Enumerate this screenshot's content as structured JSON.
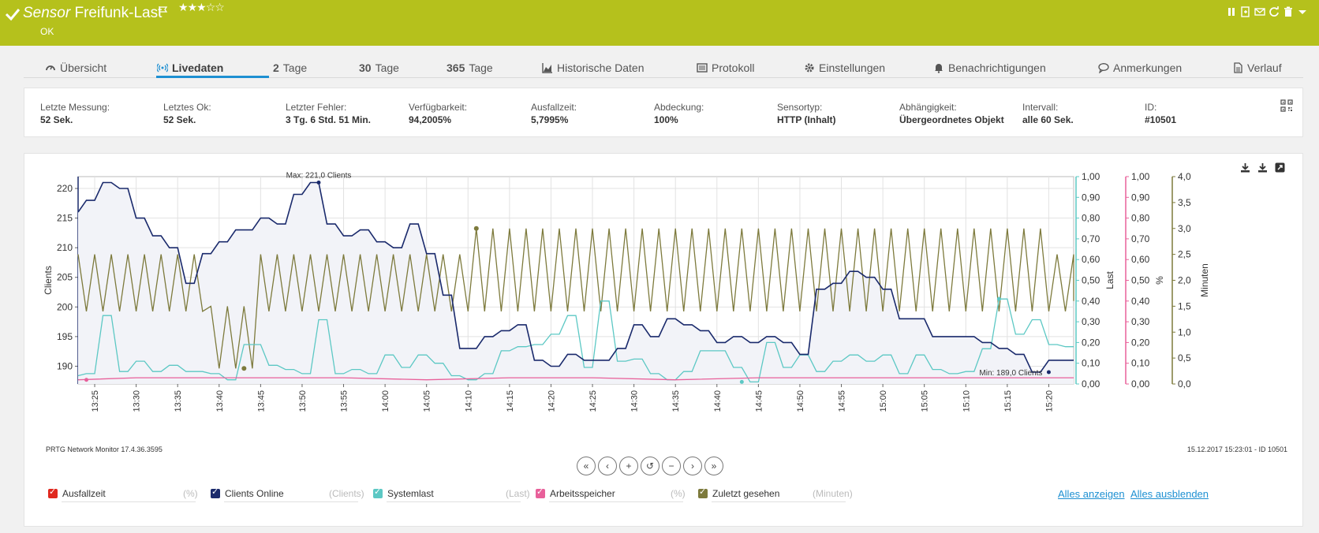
{
  "header": {
    "type_label": "Sensor",
    "sensor_name": "Freifunk-Last",
    "status": "OK",
    "priority_stars": 3,
    "priority_stars_max": 5,
    "icons": [
      "check-icon",
      "flag-icon",
      "pause-icon",
      "clone-icon",
      "mail-icon",
      "refresh-icon",
      "trash-icon",
      "dropdown-icon"
    ],
    "bg_color": "#b5c11c"
  },
  "tabs": [
    {
      "label": "Übersicht",
      "icon": "gauge-icon"
    },
    {
      "label": "Livedaten",
      "icon": "live-icon",
      "active": true
    },
    {
      "num": "2",
      "label": "Tage"
    },
    {
      "num": "30",
      "label": "Tage"
    },
    {
      "num": "365",
      "label": "Tage"
    },
    {
      "label": "Historische Daten",
      "icon": "area-chart-icon"
    },
    {
      "label": "Protokoll",
      "icon": "log-icon"
    },
    {
      "label": "Einstellungen",
      "icon": "gear-icon"
    },
    {
      "label": "Benachrichtigungen",
      "icon": "bell-icon"
    },
    {
      "label": "Anmerkungen",
      "icon": "comment-icon"
    },
    {
      "label": "Verlauf",
      "icon": "history-icon"
    }
  ],
  "info": [
    {
      "k": "Letzte Messung:",
      "v": "52 Sek."
    },
    {
      "k": "Letztes Ok:",
      "v": "52 Sek."
    },
    {
      "k": "Letzter Fehler:",
      "v": "3 Tg. 6 Std. 51 Min."
    },
    {
      "k": "Verfügbarkeit:",
      "v": "94,2005%"
    },
    {
      "k": "Ausfallzeit:",
      "v": "5,7995%"
    },
    {
      "k": "Abdeckung:",
      "v": "100%"
    },
    {
      "k": "Sensortyp:",
      "v": "HTTP (Inhalt)"
    },
    {
      "k": "Abhängigkeit:",
      "v": "Übergeordnetes Objekt"
    },
    {
      "k": "Intervall:",
      "v": "alle 60 Sek."
    },
    {
      "k": "ID:",
      "v": "#10501"
    }
  ],
  "footer": {
    "left": "PRTG Network Monitor 17.4.36.3595",
    "right": "15.12.2017 15:23:01 - ID 10501"
  },
  "nav_buttons": [
    "«",
    "‹",
    "+",
    "↺",
    "−",
    "›",
    "»"
  ],
  "legend": [
    {
      "label": "Ausfallzeit",
      "unit": "(%)",
      "color": "#e0281e"
    },
    {
      "label": "Clients Online",
      "unit": "(Clients)",
      "color": "#1a2a6c"
    },
    {
      "label": "Systemlast",
      "unit": "(Last)",
      "color": "#5cc8c4"
    },
    {
      "label": "Arbeitsspeicher",
      "unit": "(%)",
      "color": "#e8609a"
    },
    {
      "label": "Zuletzt gesehen",
      "unit": "(Minuten)",
      "color": "#7d7a3c"
    }
  ],
  "legend_links": {
    "show_all": "Alles anzeigen",
    "hide_all": "Alles ausblenden"
  },
  "chart_data": {
    "type": "line",
    "x_ticks": [
      "13:25",
      "13:30",
      "13:35",
      "13:40",
      "13:45",
      "13:50",
      "13:55",
      "14:00",
      "14:05",
      "14:10",
      "14:15",
      "14:20",
      "14:25",
      "14:30",
      "14:35",
      "14:40",
      "14:45",
      "14:50",
      "14:55",
      "15:00",
      "15:05",
      "15:10",
      "15:15",
      "15:20"
    ],
    "x_range": [
      "13:23",
      "15:23"
    ],
    "grid": true,
    "axes": [
      {
        "id": "clients",
        "side": "left",
        "label": "Clients",
        "range": [
          187,
          222
        ],
        "ticks": [
          "190",
          "195",
          "200",
          "205",
          "210",
          "215",
          "220"
        ],
        "color": "#1a2a6c"
      },
      {
        "id": "last",
        "side": "right",
        "label": "Last",
        "range": [
          0,
          1
        ],
        "ticks": [
          "0,00",
          "0,10",
          "0,20",
          "0,30",
          "0,40",
          "0,50",
          "0,60",
          "0,70",
          "0,80",
          "0,90",
          "1,00"
        ],
        "color": "#5cc8c4"
      },
      {
        "id": "pct",
        "side": "right",
        "label": "%",
        "range": [
          0,
          1
        ],
        "ticks": [
          "0,00",
          "0,10",
          "0,20",
          "0,30",
          "0,40",
          "0,50",
          "0,60",
          "0,70",
          "0,80",
          "0,90",
          "1,00"
        ],
        "color": "#e8609a"
      },
      {
        "id": "min",
        "side": "right",
        "label": "Minuten",
        "range": [
          0,
          4
        ],
        "ticks": [
          "0,0",
          "0,5",
          "1,0",
          "1,5",
          "2,0",
          "2,5",
          "3,0",
          "3,5",
          "4,0"
        ],
        "color": "#7d7a3c"
      }
    ],
    "annotations": {
      "max": "Max: 221,0 Clients",
      "min": "Min: 189,0 Clients"
    },
    "series": [
      {
        "name": "Clients Online",
        "axis": "clients",
        "color": "#1a2a6c",
        "fill": true,
        "step": true,
        "x": [
          "13:23",
          "13:24",
          "13:25",
          "13:26",
          "13:27",
          "13:28",
          "13:29",
          "13:30",
          "13:31",
          "13:32",
          "13:33",
          "13:34",
          "13:35",
          "13:36",
          "13:37",
          "13:38",
          "13:39",
          "13:40",
          "13:41",
          "13:42",
          "13:43",
          "13:44",
          "13:45",
          "13:46",
          "13:47",
          "13:48",
          "13:49",
          "13:50",
          "13:51",
          "13:52",
          "13:53",
          "13:54",
          "13:55",
          "13:56",
          "13:57",
          "13:58",
          "13:59",
          "14:00",
          "14:01",
          "14:02",
          "14:03",
          "14:04",
          "14:05",
          "14:06",
          "14:07",
          "14:08",
          "14:09",
          "14:10",
          "14:11",
          "14:12",
          "14:13",
          "14:14",
          "14:15",
          "14:16",
          "14:17",
          "14:18",
          "14:19",
          "14:20",
          "14:21",
          "14:22",
          "14:23",
          "14:24",
          "14:25",
          "14:26",
          "14:27",
          "14:28",
          "14:29",
          "14:30",
          "14:31",
          "14:32",
          "14:33",
          "14:34",
          "14:35",
          "14:36",
          "14:37",
          "14:38",
          "14:39",
          "14:40",
          "14:41",
          "14:42",
          "14:43",
          "14:44",
          "14:45",
          "14:46",
          "14:47",
          "14:48",
          "14:49",
          "14:50",
          "14:51",
          "14:52",
          "14:53",
          "14:54",
          "14:55",
          "14:56",
          "14:57",
          "14:58",
          "14:59",
          "15:00",
          "15:01",
          "15:02",
          "15:03",
          "15:04",
          "15:05",
          "15:06",
          "15:07",
          "15:08",
          "15:09",
          "15:10",
          "15:11",
          "15:12",
          "15:13",
          "15:14",
          "15:15",
          "15:16",
          "15:17",
          "15:18",
          "15:19",
          "15:20",
          "15:21",
          "15:22",
          "15:23"
        ],
        "values": [
          216,
          218,
          218,
          221,
          221,
          220,
          220,
          215,
          215,
          212,
          212,
          210,
          210,
          204,
          204,
          209,
          209,
          211,
          211,
          213,
          213,
          213,
          215,
          215,
          214,
          214,
          219,
          219,
          221,
          221,
          214,
          214,
          212,
          212,
          213,
          213,
          211,
          211,
          210,
          210,
          214,
          214,
          209,
          209,
          202,
          202,
          193,
          193,
          193,
          195,
          195,
          196,
          196,
          197,
          197,
          191,
          191,
          190,
          190,
          192,
          192,
          191,
          191,
          191,
          191,
          193,
          193,
          197,
          197,
          195,
          195,
          198,
          198,
          197,
          197,
          196,
          196,
          194,
          194,
          195,
          195,
          194,
          194,
          195,
          195,
          194,
          194,
          192,
          192,
          203,
          203,
          204,
          204,
          206,
          206,
          205,
          205,
          203,
          203,
          198,
          198,
          198,
          198,
          195,
          195,
          195,
          195,
          195,
          195,
          194,
          194,
          193,
          193,
          192,
          192,
          189,
          189,
          191,
          191,
          191,
          191
        ]
      },
      {
        "name": "Systemlast",
        "axis": "last",
        "color": "#5cc8c4",
        "x": [
          "13:23",
          "13:24",
          "13:25",
          "13:26",
          "13:27",
          "13:28",
          "13:29",
          "13:30",
          "13:31",
          "13:32",
          "13:33",
          "13:34",
          "13:35",
          "13:36",
          "13:37",
          "13:38",
          "13:39",
          "13:40",
          "13:41",
          "13:42",
          "13:43",
          "13:44",
          "13:45",
          "13:46",
          "13:47",
          "13:48",
          "13:49",
          "13:50",
          "13:51",
          "13:52",
          "13:53",
          "13:54",
          "13:55",
          "13:56",
          "13:57",
          "13:58",
          "13:59",
          "14:00",
          "14:01",
          "14:02",
          "14:03",
          "14:04",
          "14:05",
          "14:06",
          "14:07",
          "14:08",
          "14:09",
          "14:10",
          "14:11",
          "14:12",
          "14:13",
          "14:14",
          "14:15",
          "14:16",
          "14:17",
          "14:18",
          "14:19",
          "14:20",
          "14:21",
          "14:22",
          "14:23",
          "14:24",
          "14:25",
          "14:26",
          "14:27",
          "14:28",
          "14:29",
          "14:30",
          "14:31",
          "14:32",
          "14:33",
          "14:34",
          "14:35",
          "14:36",
          "14:37",
          "14:38",
          "14:39",
          "14:40",
          "14:41",
          "14:42",
          "14:43",
          "14:44",
          "14:45",
          "14:46",
          "14:47",
          "14:48",
          "14:49",
          "14:50",
          "14:51",
          "14:52",
          "14:53",
          "14:54",
          "14:55",
          "14:56",
          "14:57",
          "14:58",
          "14:59",
          "15:00",
          "15:01",
          "15:02",
          "15:03",
          "15:04",
          "15:05",
          "15:06",
          "15:07",
          "15:08",
          "15:09",
          "15:10",
          "15:11",
          "15:12",
          "15:13",
          "15:14",
          "15:15",
          "15:16",
          "15:17",
          "15:18",
          "15:19",
          "15:20",
          "15:21",
          "15:22",
          "15:23"
        ],
        "values": [
          0.04,
          0.05,
          0.05,
          0.33,
          0.33,
          0.06,
          0.06,
          0.11,
          0.11,
          0.06,
          0.06,
          0.09,
          0.09,
          0.06,
          0.06,
          0.06,
          0.05,
          0.05,
          0.02,
          0.02,
          0.19,
          0.19,
          0.19,
          0.09,
          0.09,
          0.07,
          0.07,
          0.05,
          0.05,
          0.31,
          0.31,
          0.05,
          0.05,
          0.07,
          0.07,
          0.05,
          0.05,
          0.14,
          0.14,
          0.08,
          0.08,
          0.14,
          0.14,
          0.1,
          0.1,
          0.04,
          0.04,
          0.02,
          0.02,
          0.05,
          0.05,
          0.16,
          0.16,
          0.18,
          0.18,
          0.19,
          0.19,
          0.24,
          0.24,
          0.33,
          0.33,
          0.08,
          0.08,
          0.4,
          0.4,
          0.11,
          0.11,
          0.12,
          0.12,
          0.05,
          0.05,
          0.02,
          0.02,
          0.06,
          0.06,
          0.16,
          0.16,
          0.16,
          0.16,
          0.08,
          0.08,
          0.01,
          0.01,
          0.2,
          0.2,
          0.08,
          0.08,
          0.14,
          0.14,
          0.06,
          0.06,
          0.11,
          0.11,
          0.14,
          0.14,
          0.11,
          0.11,
          0.14,
          0.14,
          0.05,
          0.05,
          0.14,
          0.14,
          0.07,
          0.07,
          0.05,
          0.05,
          0.06,
          0.06,
          0.17,
          0.17,
          0.41,
          0.41,
          0.24,
          0.24,
          0.31,
          0.31,
          0.19,
          0.19,
          0.18,
          0.18
        ]
      },
      {
        "name": "Arbeitsspeicher",
        "axis": "pct",
        "color": "#e8609a",
        "x": [
          "13:23",
          "13:30",
          "13:45",
          "13:50",
          "13:55",
          "14:05",
          "14:15",
          "14:25",
          "14:35",
          "14:45",
          "14:55",
          "15:05",
          "15:15",
          "15:23"
        ],
        "values": [
          0.02,
          0.03,
          0.03,
          0.03,
          0.03,
          0.02,
          0.03,
          0.03,
          0.02,
          0.03,
          0.03,
          0.03,
          0.03,
          0.03
        ]
      },
      {
        "name": "Zuletzt gesehen",
        "axis": "min",
        "color": "#7d7a3c",
        "pattern": "sawtooth",
        "period_minutes": 2,
        "low": 1.4,
        "high": 2.5,
        "x": [
          "13:23",
          "13:41",
          "13:44",
          "14:07",
          "14:10",
          "15:21",
          "15:23"
        ],
        "values": [
          1.5,
          0.3,
          2.4,
          1.4,
          3.0,
          3.0,
          1.6
        ]
      },
      {
        "name": "Ausfallzeit",
        "axis": "pct",
        "color": "#e0281e",
        "x": [],
        "values": []
      }
    ]
  }
}
